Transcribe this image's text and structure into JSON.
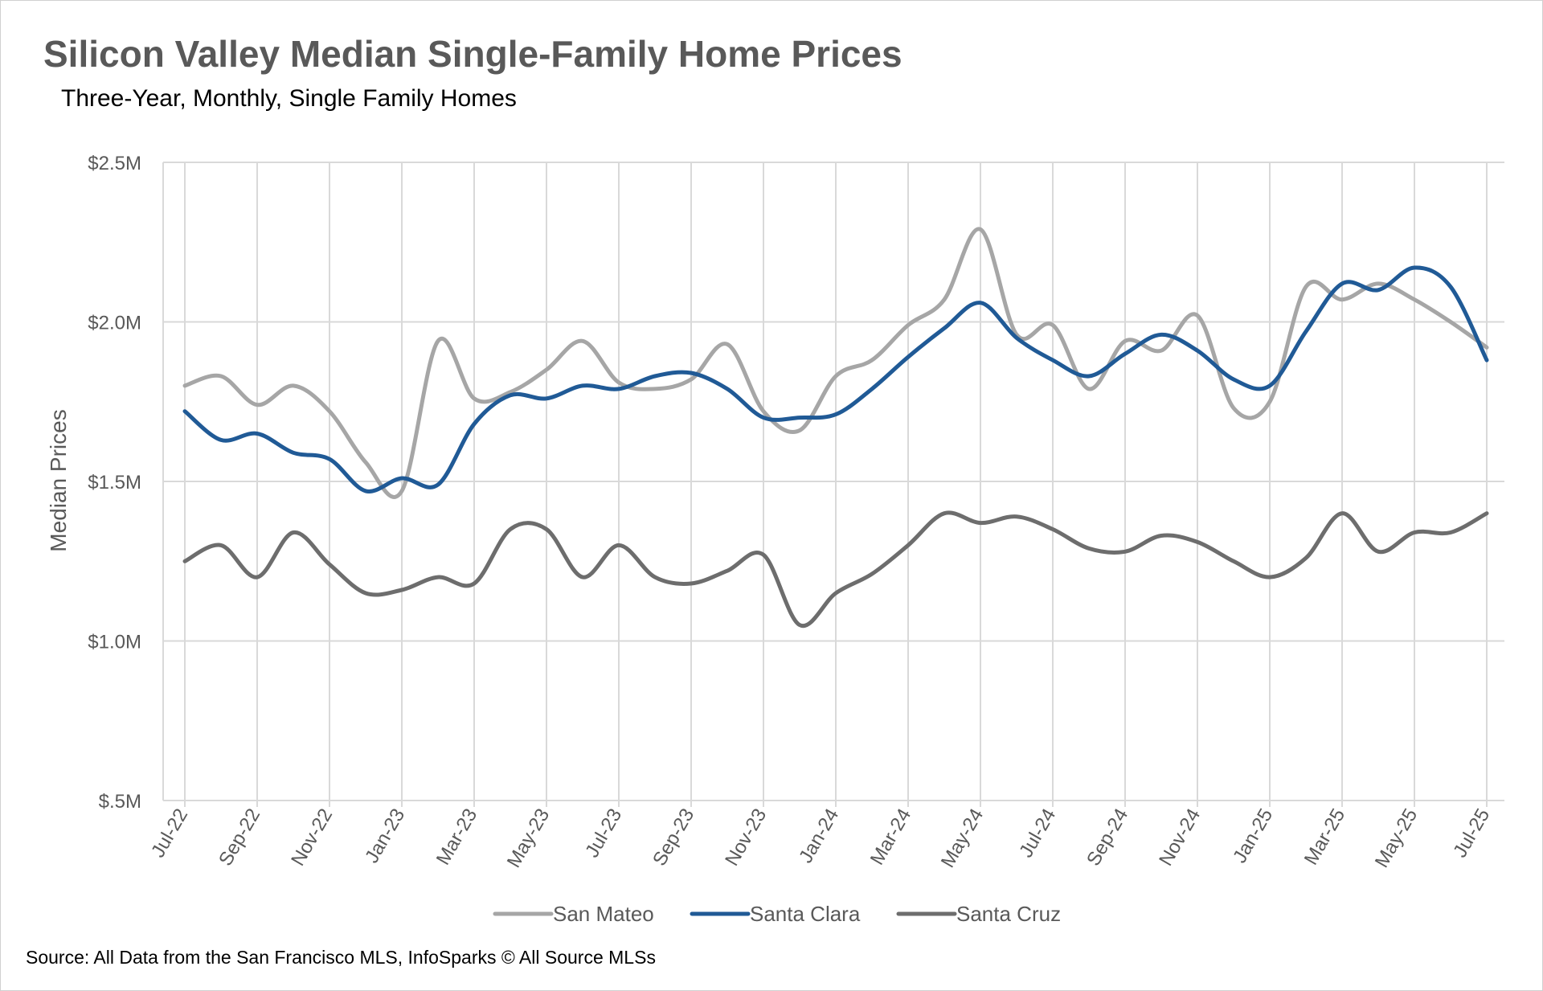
{
  "header": {
    "title": "Silicon Valley Median Single-Family Home Prices",
    "subtitle": "Three-Year, Monthly, Single Family Homes"
  },
  "footer": {
    "source": "Source: All Data from the San Francisco MLS, InfoSparks © All Source MLSs"
  },
  "chart_data": {
    "type": "line",
    "title": "Silicon Valley Median Single-Family Home Prices",
    "subtitle": "Three-Year, Monthly, Single Family Homes",
    "xlabel": "",
    "ylabel": "Median Prices",
    "ylim": [
      0.5,
      2.5
    ],
    "y_unit": "$M",
    "y_ticks": [
      {
        "value": 0.5,
        "label": "$.5M"
      },
      {
        "value": 1.0,
        "label": "$1.0M"
      },
      {
        "value": 1.5,
        "label": "$1.5M"
      },
      {
        "value": 2.0,
        "label": "$2.0M"
      },
      {
        "value": 2.5,
        "label": "$2.5M"
      }
    ],
    "x_tick_labels": [
      "Jul-22",
      "Sep-22",
      "Nov-22",
      "Jan-23",
      "Mar-23",
      "May-23",
      "Jul-23",
      "Sep-23",
      "Nov-23",
      "Jan-24",
      "Mar-24",
      "May-24",
      "Jul-24",
      "Sep-24",
      "Nov-24",
      "Jan-25",
      "Mar-25",
      "May-25",
      "Jul-25"
    ],
    "categories": [
      "Jul-22",
      "Aug-22",
      "Sep-22",
      "Oct-22",
      "Nov-22",
      "Dec-22",
      "Jan-23",
      "Feb-23",
      "Mar-23",
      "Apr-23",
      "May-23",
      "Jun-23",
      "Jul-23",
      "Aug-23",
      "Sep-23",
      "Oct-23",
      "Nov-23",
      "Dec-23",
      "Jan-24",
      "Feb-24",
      "Mar-24",
      "Apr-24",
      "May-24",
      "Jun-24",
      "Jul-24",
      "Aug-24",
      "Sep-24",
      "Oct-24",
      "Nov-24",
      "Dec-24",
      "Jan-25",
      "Feb-25",
      "Mar-25",
      "Apr-25",
      "May-25",
      "Jun-25",
      "Jul-25"
    ],
    "grid": true,
    "legend_position": "bottom",
    "series": [
      {
        "name": "San Mateo",
        "color": "#a6a6a6",
        "values": [
          1.8,
          1.83,
          1.74,
          1.8,
          1.72,
          1.56,
          1.47,
          1.94,
          1.76,
          1.78,
          1.85,
          1.94,
          1.81,
          1.79,
          1.82,
          1.93,
          1.72,
          1.66,
          1.83,
          1.88,
          1.99,
          2.07,
          2.29,
          1.96,
          1.99,
          1.79,
          1.94,
          1.91,
          2.02,
          1.73,
          1.75,
          2.11,
          2.07,
          2.12,
          2.07,
          2.0,
          1.92
        ]
      },
      {
        "name": "Santa Clara",
        "color": "#205a96",
        "values": [
          1.72,
          1.63,
          1.65,
          1.59,
          1.57,
          1.47,
          1.51,
          1.49,
          1.68,
          1.77,
          1.76,
          1.8,
          1.79,
          1.83,
          1.84,
          1.79,
          1.7,
          1.7,
          1.71,
          1.79,
          1.89,
          1.98,
          2.06,
          1.95,
          1.88,
          1.83,
          1.9,
          1.96,
          1.91,
          1.82,
          1.8,
          1.97,
          2.12,
          2.1,
          2.17,
          2.11,
          1.88
        ]
      },
      {
        "name": "Santa Cruz",
        "color": "#6d6d6d",
        "values": [
          1.25,
          1.3,
          1.2,
          1.34,
          1.24,
          1.15,
          1.16,
          1.2,
          1.18,
          1.35,
          1.35,
          1.2,
          1.3,
          1.2,
          1.18,
          1.22,
          1.27,
          1.05,
          1.15,
          1.21,
          1.3,
          1.4,
          1.37,
          1.39,
          1.35,
          1.29,
          1.28,
          1.33,
          1.31,
          1.25,
          1.2,
          1.26,
          1.4,
          1.28,
          1.34,
          1.34,
          1.4
        ]
      }
    ]
  }
}
